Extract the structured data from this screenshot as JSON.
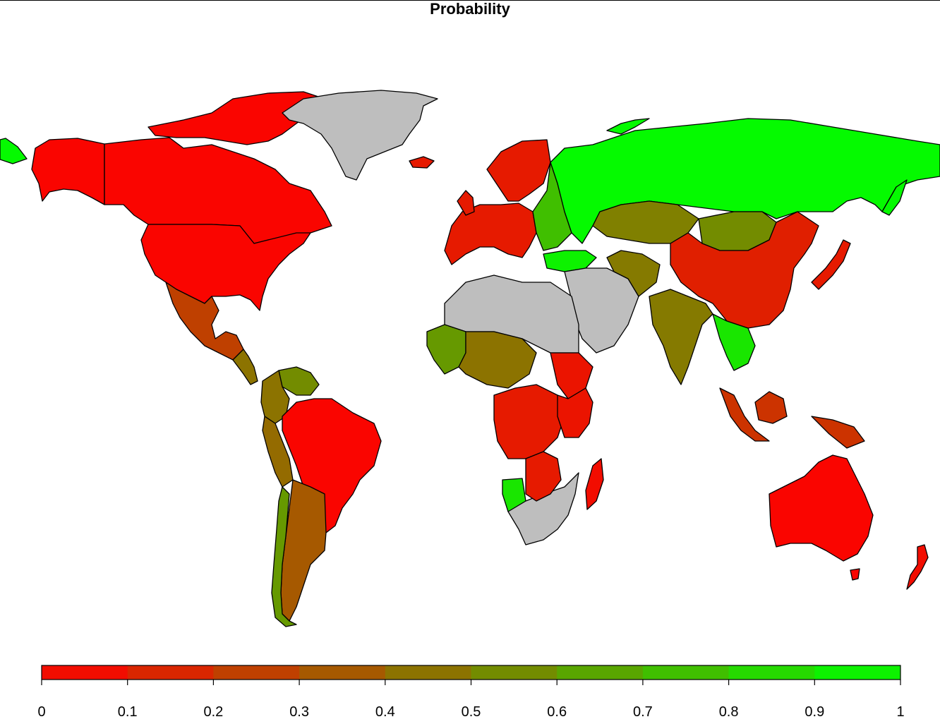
{
  "title": "Probability",
  "colors": {
    "no_data": "#bebebe",
    "scale_low": "#ff0000",
    "scale_high": "#00ff00",
    "border": "#000000",
    "ocean": "#ffffff"
  },
  "legend": {
    "type": "color-scale",
    "placement": "bottom",
    "min": 0,
    "max": 1,
    "ticks": [
      "0",
      "0.1",
      "0.2",
      "0.3",
      "0.4",
      "0.5",
      "0.6",
      "0.7",
      "0.8",
      "0.9",
      "1"
    ]
  },
  "regions": [
    {
      "id": "canada",
      "value": 0.02
    },
    {
      "id": "alaska",
      "value": 0.02
    },
    {
      "id": "usa",
      "value": 0.02
    },
    {
      "id": "greenland",
      "value": null
    },
    {
      "id": "mexico",
      "value": 0.25
    },
    {
      "id": "brazil",
      "value": 0.02
    },
    {
      "id": "argentina",
      "value": 0.35
    },
    {
      "id": "peru",
      "value": 0.42
    },
    {
      "id": "colombia",
      "value": 0.45
    },
    {
      "id": "venezuela",
      "value": 0.55
    },
    {
      "id": "chile",
      "value": 0.6
    },
    {
      "id": "russia",
      "value": 0.98
    },
    {
      "id": "kazakhstan",
      "value": 0.5
    },
    {
      "id": "mongolia",
      "value": 0.55
    },
    {
      "id": "china",
      "value": 0.12
    },
    {
      "id": "india",
      "value": 0.48
    },
    {
      "id": "western-europe",
      "value": 0.1
    },
    {
      "id": "eastern-europe",
      "value": 0.75
    },
    {
      "id": "scandinavia",
      "value": 0.1
    },
    {
      "id": "turkey",
      "value": 0.95
    },
    {
      "id": "middle-east",
      "value": null
    },
    {
      "id": "north-africa",
      "value": null
    },
    {
      "id": "west-africa",
      "value": 0.6
    },
    {
      "id": "sahel",
      "value": 0.45
    },
    {
      "id": "central-africa",
      "value": 0.1
    },
    {
      "id": "east-africa",
      "value": 0.08
    },
    {
      "id": "southern-africa",
      "value": null
    },
    {
      "id": "angola",
      "value": 0.9
    },
    {
      "id": "madagascar",
      "value": 0.05
    },
    {
      "id": "australia",
      "value": 0.02
    },
    {
      "id": "new-zealand",
      "value": 0.05
    },
    {
      "id": "indonesia",
      "value": 0.2
    },
    {
      "id": "southeast-asia",
      "value": 0.9
    },
    {
      "id": "japan",
      "value": 0.1
    }
  ]
}
